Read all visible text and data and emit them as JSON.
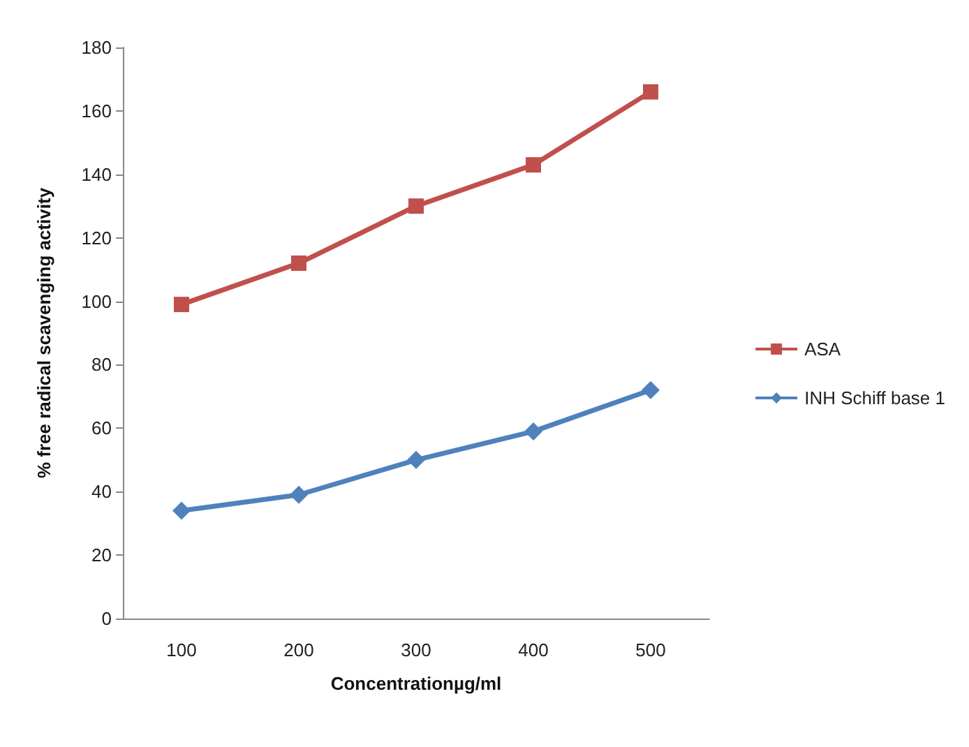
{
  "chart_data": {
    "type": "line",
    "xlabel": "Concentrationµg/ml",
    "ylabel": "% free radical scavenging activity",
    "categories": [
      "100",
      "200",
      "300",
      "400",
      "500"
    ],
    "series": [
      {
        "name": "ASA",
        "color": "#c0504d",
        "marker": "square",
        "values": [
          99,
          112,
          130,
          143,
          166
        ]
      },
      {
        "name": "INH Schiff base 1",
        "color": "#4f81bd",
        "marker": "diamond",
        "values": [
          34,
          39,
          50,
          59,
          72
        ]
      }
    ],
    "ylim": [
      0,
      180
    ],
    "yticks": [
      0,
      20,
      40,
      60,
      80,
      100,
      120,
      140,
      160,
      180
    ],
    "grid": false,
    "legend": "right",
    "line_style": "solid"
  }
}
